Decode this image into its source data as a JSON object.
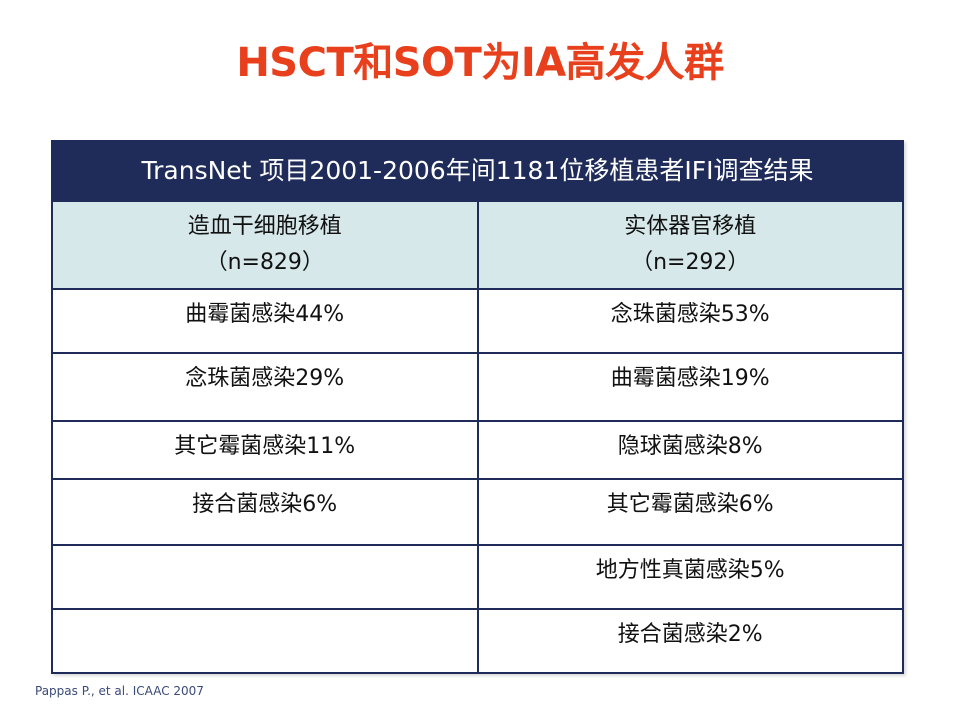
{
  "title": "HSCT和SOT为IA高发人群",
  "table": {
    "banner": "TransNet 项目2001-2006年间1181位移植患者IFI调查结果",
    "columns": [
      {
        "name": "造血干细胞移植",
        "count": "（n=829）"
      },
      {
        "name": "实体器官移植",
        "count": "（n=292）"
      }
    ],
    "rows": [
      [
        "曲霉菌感染44%",
        "念珠菌感染53%"
      ],
      [
        "念珠菌感染29%",
        "曲霉菌感染19%"
      ],
      [
        "其它霉菌感染11%",
        "隐球菌感染8%"
      ],
      [
        "接合菌感染6%",
        "其它霉菌感染6%"
      ],
      [
        "",
        "地方性真菌感染5%"
      ],
      [
        "",
        "接合菌感染2%"
      ]
    ]
  },
  "source": "Pappas P., et al. ICAAC 2007"
}
